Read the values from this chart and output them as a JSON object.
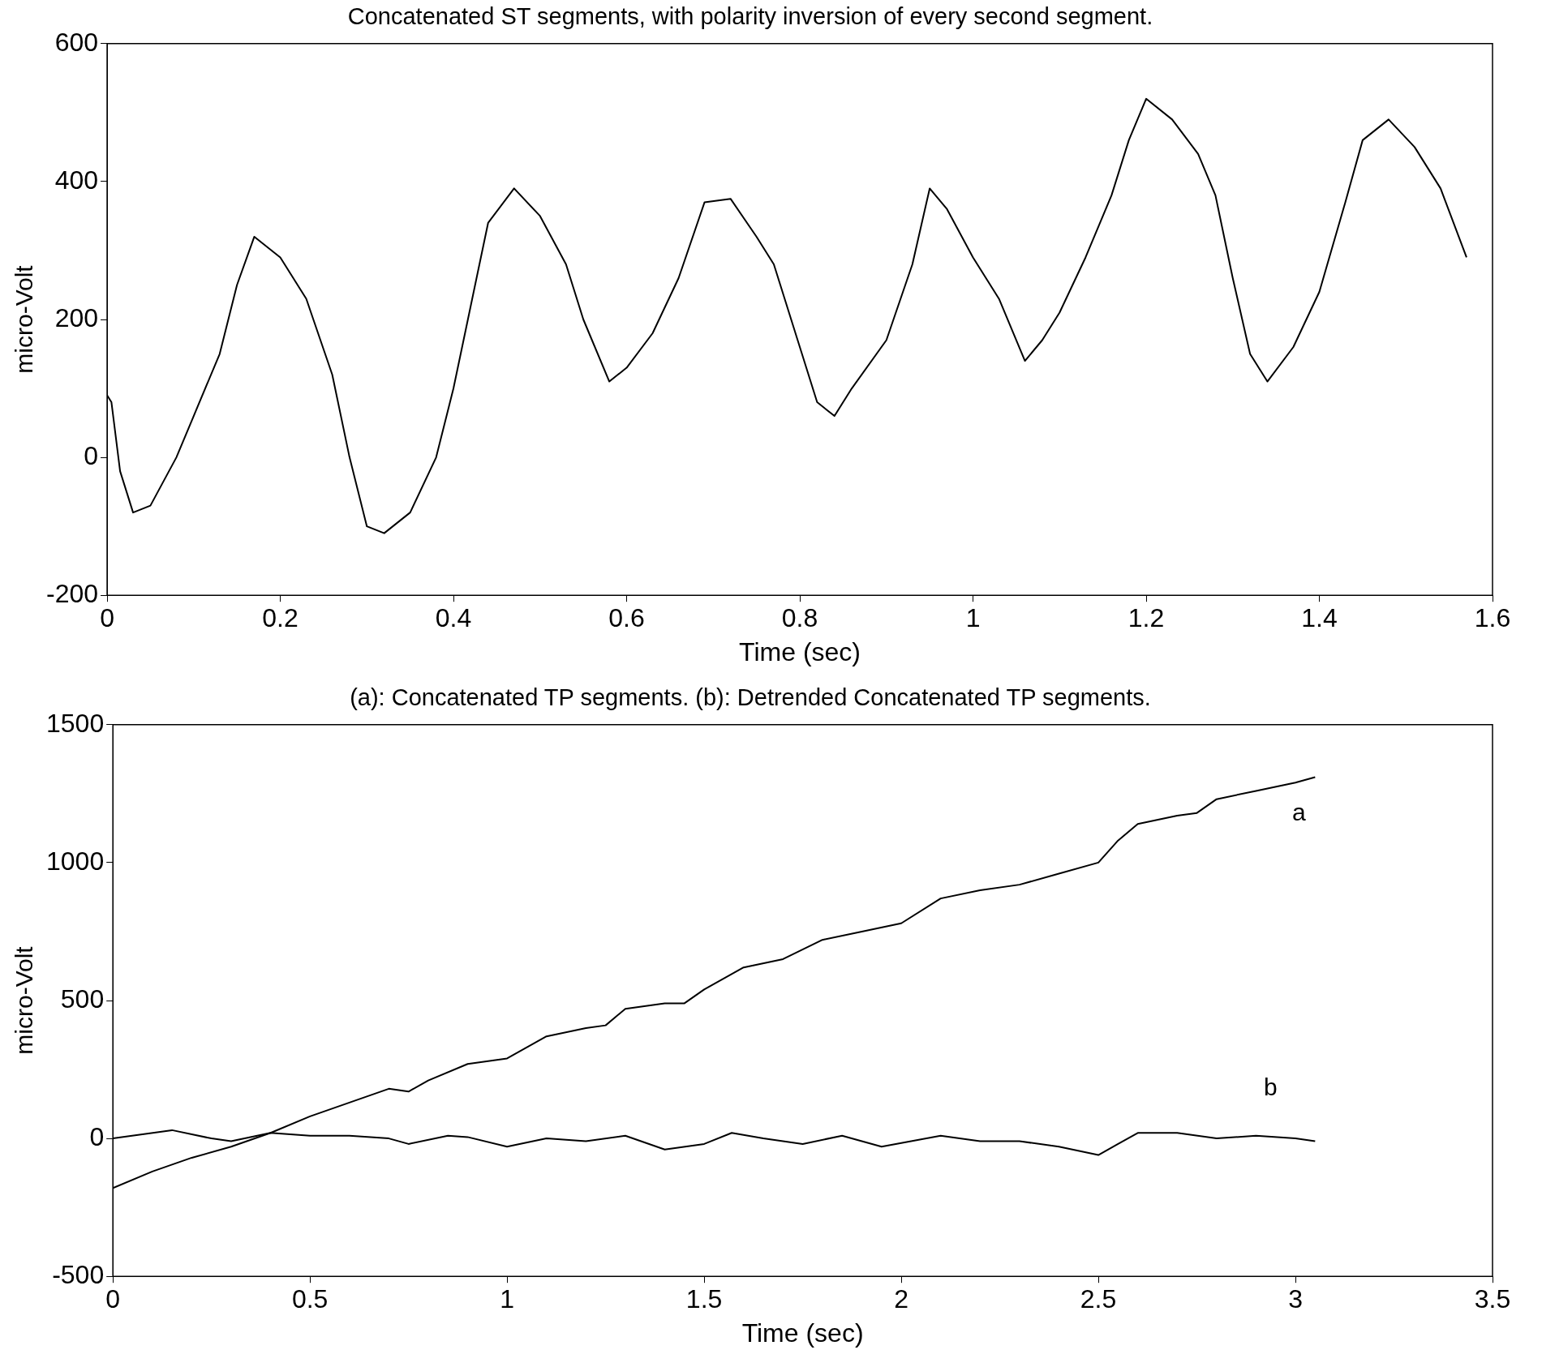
{
  "chart_data": [
    {
      "type": "line",
      "title": "Concatenated ST segments, with polarity inversion of every second segment.",
      "xlabel": "Time (sec)",
      "ylabel": "micro-Volt",
      "xlim": [
        0,
        1.6
      ],
      "xticks": [
        0,
        0.2,
        0.4,
        0.6,
        0.8,
        1,
        1.2,
        1.4,
        1.6
      ],
      "ylim": [
        -200,
        600
      ],
      "yticks": [
        -200,
        0,
        200,
        400,
        600
      ],
      "grid": false,
      "legend": false,
      "marker": "none",
      "line_style": "solid",
      "series": [
        {
          "color": "#000000",
          "x": [
            0,
            0.005,
            0.015,
            0.03,
            0.05,
            0.08,
            0.1,
            0.13,
            0.15,
            0.17,
            0.2,
            0.23,
            0.26,
            0.28,
            0.3,
            0.32,
            0.35,
            0.38,
            0.4,
            0.42,
            0.44,
            0.47,
            0.5,
            0.53,
            0.55,
            0.58,
            0.6,
            0.63,
            0.66,
            0.69,
            0.72,
            0.75,
            0.77,
            0.8,
            0.82,
            0.84,
            0.86,
            0.9,
            0.93,
            0.95,
            0.97,
            1.0,
            1.03,
            1.06,
            1.08,
            1.1,
            1.13,
            1.16,
            1.18,
            1.2,
            1.23,
            1.26,
            1.28,
            1.3,
            1.32,
            1.34,
            1.37,
            1.4,
            1.43,
            1.45,
            1.48,
            1.51,
            1.54,
            1.57
          ],
          "values": [
            90,
            80,
            -20,
            -80,
            -70,
            0,
            60,
            150,
            250,
            320,
            290,
            230,
            120,
            0,
            -100,
            -110,
            -80,
            0,
            100,
            220,
            340,
            390,
            350,
            280,
            200,
            110,
            130,
            180,
            260,
            370,
            375,
            320,
            280,
            160,
            80,
            60,
            100,
            170,
            280,
            390,
            360,
            290,
            230,
            140,
            170,
            210,
            290,
            380,
            460,
            520,
            490,
            440,
            380,
            260,
            150,
            110,
            160,
            240,
            370,
            460,
            490,
            450,
            390,
            290
          ]
        }
      ]
    },
    {
      "type": "line",
      "title": "(a): Concatenated TP segments. (b): Detrended Concatenated TP segments.",
      "xlabel": "Time (sec)",
      "ylabel": "micro-Volt",
      "xlim": [
        0,
        3.5
      ],
      "xticks": [
        0,
        0.5,
        1,
        1.5,
        2,
        2.5,
        3,
        3.5
      ],
      "ylim": [
        -500,
        1500
      ],
      "yticks": [
        -500,
        0,
        500,
        1000,
        1500
      ],
      "grid": false,
      "legend": false,
      "marker": "none",
      "line_style": "solid",
      "series": [
        {
          "name": "a",
          "color": "#000000",
          "x": [
            0,
            0.1,
            0.2,
            0.3,
            0.4,
            0.5,
            0.6,
            0.7,
            0.75,
            0.8,
            0.9,
            1.0,
            1.1,
            1.2,
            1.25,
            1.3,
            1.4,
            1.45,
            1.5,
            1.6,
            1.7,
            1.8,
            1.9,
            2.0,
            2.1,
            2.2,
            2.3,
            2.4,
            2.5,
            2.55,
            2.6,
            2.7,
            2.75,
            2.8,
            2.9,
            3.0,
            3.05
          ],
          "values": [
            -180,
            -120,
            -70,
            -30,
            20,
            80,
            130,
            180,
            170,
            210,
            270,
            290,
            370,
            400,
            410,
            470,
            490,
            490,
            540,
            620,
            650,
            720,
            750,
            780,
            870,
            900,
            920,
            960,
            1000,
            1080,
            1140,
            1170,
            1180,
            1230,
            1260,
            1290,
            1310
          ]
        },
        {
          "name": "b",
          "color": "#000000",
          "x": [
            0,
            0.15,
            0.25,
            0.3,
            0.4,
            0.5,
            0.6,
            0.7,
            0.75,
            0.85,
            0.9,
            1.0,
            1.1,
            1.2,
            1.3,
            1.4,
            1.5,
            1.57,
            1.65,
            1.75,
            1.85,
            1.95,
            2.1,
            2.2,
            2.3,
            2.4,
            2.5,
            2.55,
            2.6,
            2.7,
            2.8,
            2.9,
            3.0,
            3.05
          ],
          "values": [
            0,
            30,
            0,
            -10,
            20,
            10,
            10,
            0,
            -20,
            10,
            5,
            -30,
            0,
            -10,
            10,
            -40,
            -20,
            20,
            0,
            -20,
            10,
            -30,
            10,
            -10,
            -10,
            -30,
            -60,
            -20,
            20,
            20,
            0,
            10,
            0,
            -10
          ]
        }
      ]
    }
  ]
}
